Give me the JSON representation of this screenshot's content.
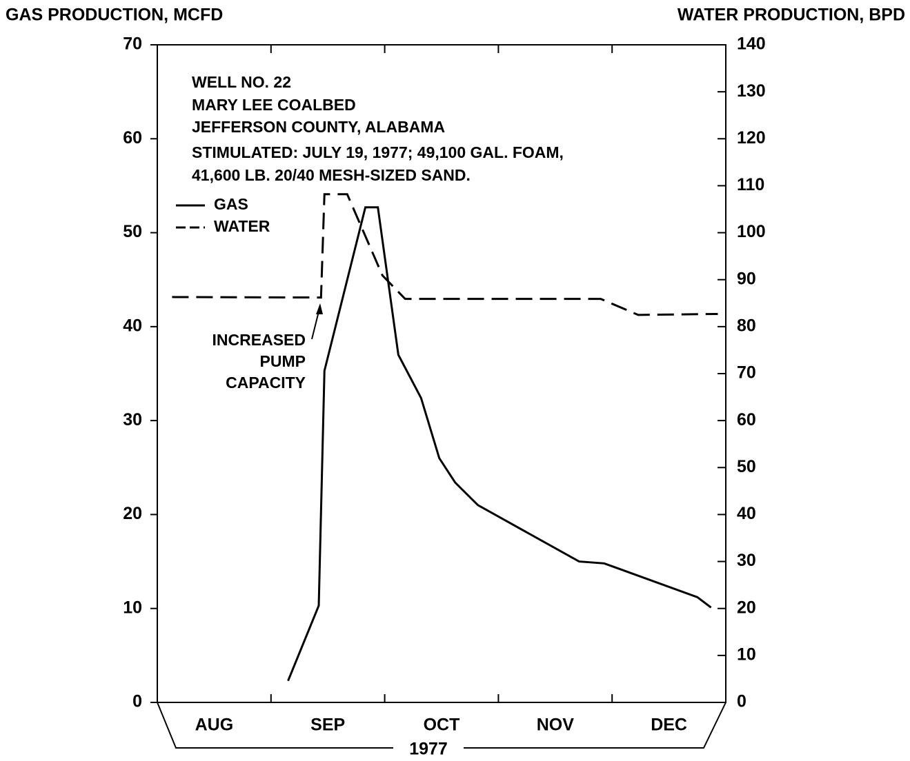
{
  "chart_data": {
    "type": "line",
    "title": "GAS PRODUCTION, MCFD",
    "y2_title": "WATER PRODUCTION, BPD",
    "x_axis_label": "1977",
    "categories": [
      "AUG",
      "SEP",
      "OCT",
      "NOV",
      "DEC"
    ],
    "xlim": [
      0,
      5
    ],
    "ylim": [
      0,
      70
    ],
    "yticks": [
      0,
      10,
      20,
      30,
      40,
      50,
      60,
      70
    ],
    "y2lim": [
      0,
      140
    ],
    "y2ticks": [
      0,
      10,
      20,
      30,
      40,
      50,
      60,
      70,
      80,
      90,
      100,
      110,
      120,
      130,
      140
    ],
    "series": [
      {
        "name": "GAS",
        "color": "#000000",
        "line_style": "solid",
        "x": [
          1.15,
          1.42,
          1.47,
          1.83,
          1.94,
          2.12,
          2.32,
          2.48,
          2.62,
          2.82,
          3.71,
          3.93,
          4.75,
          4.87
        ],
        "values": [
          2.3,
          10.3,
          35.3,
          52.7,
          52.7,
          37.0,
          32.4,
          26.0,
          23.4,
          21.0,
          15.0,
          14.8,
          11.2,
          10.1
        ]
      },
      {
        "name": "WATER",
        "color": "#000000",
        "line_style": "dashed",
        "axis": "y2",
        "x": [
          0.13,
          1.44,
          1.47,
          1.67,
          1.98,
          2.18,
          3.9,
          4.23,
          4.93
        ],
        "values": [
          86.3,
          86.2,
          108.2,
          108.2,
          90.9,
          85.9,
          85.9,
          82.5,
          82.7
        ]
      }
    ],
    "annotations": [
      "WELL NO. 22",
      "MARY LEE COALBED",
      "JEFFERSON COUNTY, ALABAMA",
      "STIMULATED:  JULY  19,  1977;  49,100  GAL.  FOAM,",
      "41,600  LB.  20/40  MESH-SIZED  SAND."
    ],
    "arrow_note": [
      "INCREASED",
      "PUMP",
      "CAPACITY"
    ]
  }
}
